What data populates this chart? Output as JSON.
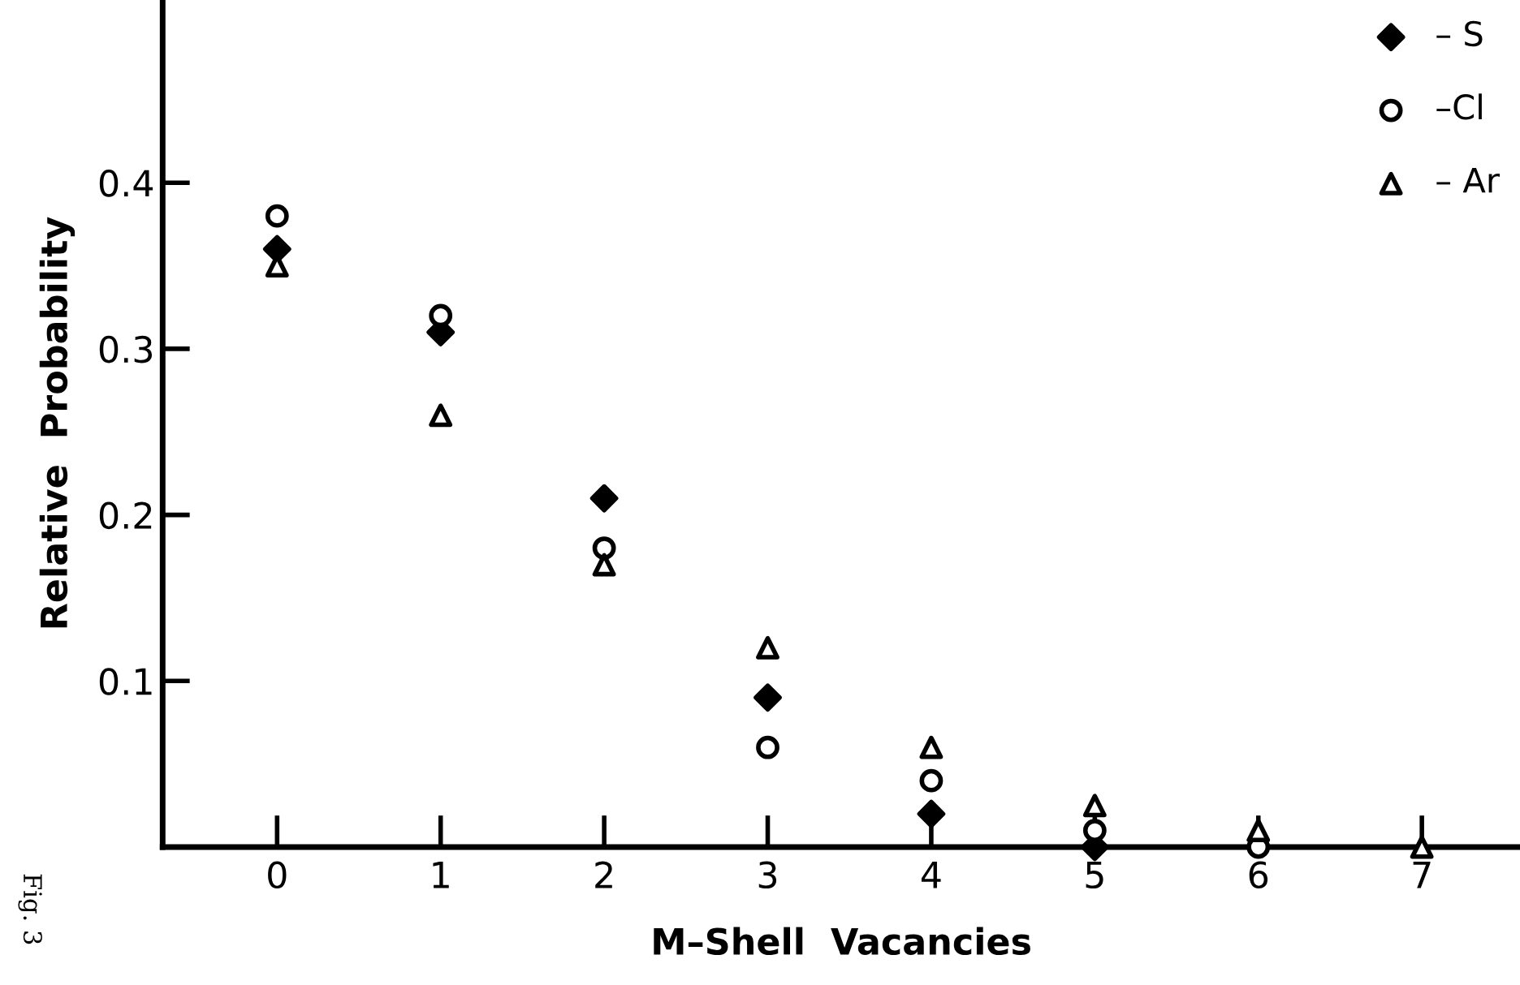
{
  "chart_data": {
    "type": "scatter",
    "xlabel": "M–Shell  Vacancies",
    "ylabel": "Relative  Probability",
    "xlim": [
      -0.7,
      7.6
    ],
    "ylim": [
      0,
      0.51
    ],
    "xticks": [
      0,
      1,
      2,
      3,
      4,
      5,
      6,
      7
    ],
    "yticks": [
      {
        "value": 0.1,
        "label": "0.1"
      },
      {
        "value": 0.2,
        "label": "0.2"
      },
      {
        "value": 0.3,
        "label": "0.3"
      },
      {
        "value": 0.4,
        "label": "0.4"
      }
    ],
    "series": [
      {
        "name": "– S",
        "color": "#000000",
        "marker": "diamond",
        "x": [
          0,
          1,
          2,
          3,
          4,
          5
        ],
        "values": [
          0.36,
          0.31,
          0.21,
          0.09,
          0.02,
          0
        ]
      },
      {
        "name": "–Cl",
        "color": "#000000",
        "marker": "circle",
        "x": [
          0,
          1,
          2,
          3,
          4,
          5,
          6
        ],
        "values": [
          0.38,
          0.32,
          0.18,
          0.06,
          0.04,
          0.01,
          0
        ]
      },
      {
        "name": "– Ar",
        "color": "#000000",
        "marker": "triangle",
        "x": [
          0,
          1,
          2,
          3,
          4,
          5,
          6,
          7
        ],
        "values": [
          0.35,
          0.26,
          0.17,
          0.12,
          0.06,
          0.025,
          0.01,
          0
        ]
      }
    ],
    "legend": "top right",
    "grid": false,
    "annotations": [
      "Fig. 3"
    ]
  }
}
